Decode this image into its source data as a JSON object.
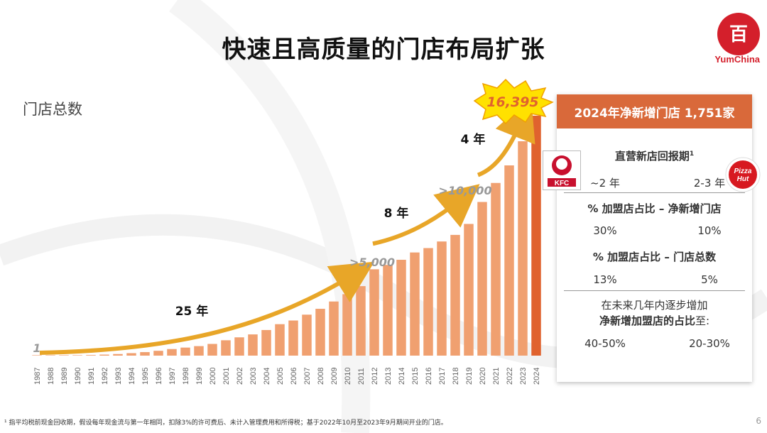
{
  "title": "快速且高质量的门店布局扩张",
  "logo": {
    "brand": "YumChina",
    "color": "#d41f2b"
  },
  "ylabel": "门店总数",
  "chart_data": {
    "type": "bar",
    "ylabel": "门店总数",
    "categories": [
      "1987",
      "1988",
      "1989",
      "1990",
      "1991",
      "1992",
      "1993",
      "1994",
      "1995",
      "1996",
      "1997",
      "1998",
      "1999",
      "2000",
      "2001",
      "2002",
      "2003",
      "2004",
      "2005",
      "2006",
      "2007",
      "2008",
      "2009",
      "2010",
      "2011",
      "2012",
      "2013",
      "2014",
      "2015",
      "2016",
      "2017",
      "2018",
      "2019",
      "2020",
      "2021",
      "2022",
      "2023",
      "2024"
    ],
    "values": [
      1,
      5,
      10,
      20,
      40,
      70,
      110,
      170,
      240,
      330,
      450,
      550,
      650,
      800,
      1050,
      1250,
      1450,
      1750,
      2150,
      2400,
      2800,
      3200,
      3700,
      4200,
      4750,
      5900,
      6200,
      6550,
      7050,
      7350,
      7800,
      8250,
      9000,
      10500,
      11800,
      13000,
      14650,
      16395
    ],
    "ylim": [
      0,
      17000
    ],
    "colors": {
      "bar": "#f0a070",
      "highlight": "#e0622e",
      "arrow": "#e8a628"
    },
    "annotations": {
      "first": "1",
      "m5000": ">5,000",
      "m10000": ">10,000",
      "last": "16,395",
      "gap25": "25 年",
      "gap8": "8 年",
      "gap4": "4 年"
    }
  },
  "panel": {
    "header": "2024年净新增门店 1,751家",
    "payback_title": "直营新店回报期",
    "payback_sup": "1",
    "payback_kfc": "~2 年",
    "payback_ph": "2-3 年",
    "franchise_new_title": "% 加盟店占比 – 净新增门店",
    "franchise_new_kfc": "30%",
    "franchise_new_ph": "10%",
    "franchise_total_title": "% 加盟店占比 – 门店总数",
    "franchise_total_kfc": "13%",
    "franchise_total_ph": "5%",
    "future_line1": "在未来几年内逐步增加",
    "future_line2_bold": "净新增加盟店的占比",
    "future_line2_tail": "至:",
    "future_kfc": "40-50%",
    "future_ph": "20-30%"
  },
  "brands": {
    "kfc": "KFC",
    "ph_line1": "Pizza",
    "ph_line2": "Hut"
  },
  "footnote": "¹ 指平均税前现金回收期，假设每年现金流与第一年相同，扣除3%的许可费后、未计入管理费用和所得税；基于2022年10月至2023年9月期间开业的门店。",
  "page_number": "6"
}
